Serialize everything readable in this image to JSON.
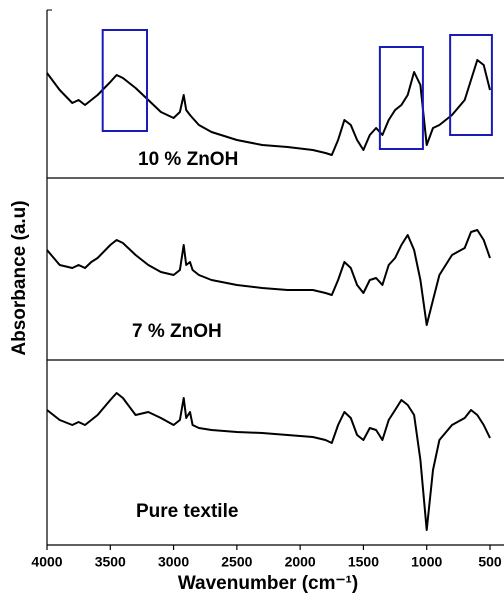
{
  "chart_data": {
    "type": "line",
    "xlabel": "Wavenumber (cm⁻¹)",
    "ylabel": "Absorbance (a.u)",
    "xlim": [
      4000,
      500
    ],
    "xticks": [
      4000,
      3500,
      3000,
      2500,
      2000,
      1500,
      1000,
      500
    ],
    "x": [
      4000,
      3900,
      3800,
      3750,
      3700,
      3650,
      3600,
      3500,
      3450,
      3400,
      3300,
      3200,
      3100,
      3000,
      2950,
      2920,
      2900,
      2870,
      2850,
      2800,
      2700,
      2500,
      2300,
      2100,
      1900,
      1800,
      1750,
      1700,
      1650,
      1600,
      1550,
      1500,
      1450,
      1400,
      1350,
      1300,
      1250,
      1200,
      1150,
      1100,
      1050,
      1000,
      950,
      900,
      800,
      700,
      650,
      600,
      550,
      500
    ],
    "series": [
      {
        "name": "10 % ZnOH",
        "color": "#000000",
        "ylim": [
          0,
          168
        ],
        "values": [
          105,
          88,
          75,
          78,
          73,
          78,
          83,
          96,
          103,
          100,
          90,
          78,
          66,
          60,
          66,
          83,
          68,
          63,
          60,
          53,
          46,
          38,
          33,
          31,
          28,
          25,
          23,
          38,
          58,
          53,
          38,
          28,
          43,
          50,
          43,
          58,
          68,
          73,
          83,
          106,
          93,
          33,
          50,
          53,
          63,
          78,
          98,
          118,
          113,
          88
        ],
        "highlights": [
          [
            3560,
            3210
          ],
          [
            1370,
            1030
          ],
          [
            815,
            485
          ]
        ],
        "highlight_color": "#1a1ab8"
      },
      {
        "name": "7 % ZnOH",
        "color": "#000000",
        "ylim": [
          0,
          182
        ],
        "values": [
          110,
          95,
          92,
          95,
          92,
          98,
          102,
          115,
          120,
          117,
          105,
          95,
          88,
          85,
          90,
          115,
          95,
          98,
          90,
          85,
          80,
          75,
          72,
          70,
          70,
          67,
          65,
          80,
          98,
          92,
          75,
          67,
          80,
          82,
          75,
          95,
          102,
          115,
          125,
          110,
          80,
          35,
          60,
          85,
          105,
          112,
          128,
          130,
          120,
          102
        ]
      },
      {
        "name": "Pure textile",
        "color": "#000000",
        "ylim": [
          0,
          185
        ],
        "values": [
          135,
          125,
          120,
          123,
          120,
          125,
          130,
          145,
          152,
          147,
          130,
          133,
          127,
          120,
          125,
          147,
          127,
          133,
          120,
          117,
          115,
          113,
          112,
          110,
          108,
          105,
          102,
          120,
          133,
          127,
          110,
          105,
          117,
          115,
          105,
          125,
          135,
          145,
          140,
          130,
          85,
          15,
          75,
          105,
          120,
          127,
          135,
          130,
          120,
          107
        ]
      }
    ]
  }
}
